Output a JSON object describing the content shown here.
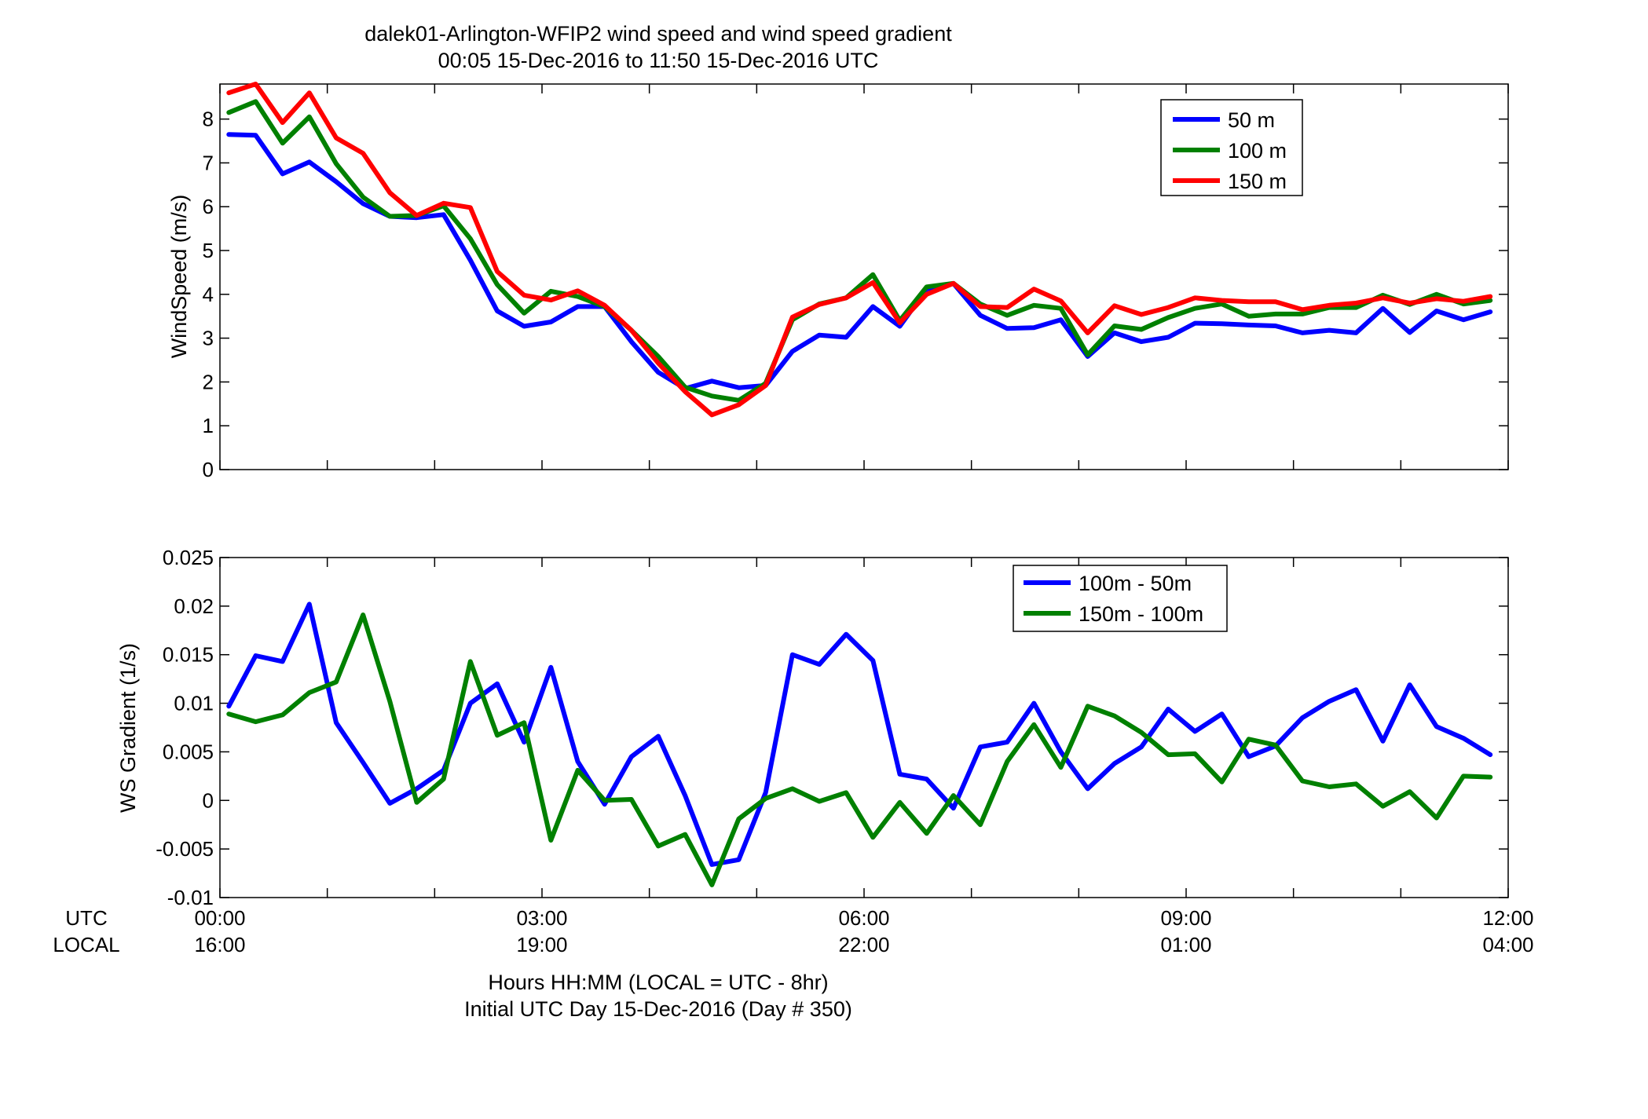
{
  "figure": {
    "title_line1": "dalek01-Arlington-WFIP2  wind speed and wind speed gradient",
    "title_line2": "00:05 15-Dec-2016 to 11:50 15-Dec-2016  UTC",
    "xlabel_line1": "Hours HH:MM  (LOCAL = UTC - 8hr)",
    "xlabel_line2": "Initial UTC Day 15-Dec-2016 (Day # 350)",
    "row_label_utc": "UTC",
    "row_label_local": "LOCAL",
    "x_ticks_utc": [
      "00:00",
      "03:00",
      "06:00",
      "09:00",
      "12:00"
    ],
    "x_ticks_local": [
      "16:00",
      "19:00",
      "22:00",
      "01:00",
      "04:00"
    ]
  },
  "chart_data": [
    {
      "type": "line",
      "ylabel": "WindSpeed (m/s)",
      "xlim": [
        0,
        12
      ],
      "ylim": [
        0,
        8.8
      ],
      "yticks": [
        "0",
        "1",
        "2",
        "3",
        "4",
        "5",
        "6",
        "7",
        "8"
      ],
      "grid": false,
      "legend_position": "top-right",
      "x": [
        0.083,
        0.333,
        0.583,
        0.833,
        1.083,
        1.333,
        1.583,
        1.833,
        2.083,
        2.333,
        2.583,
        2.833,
        3.083,
        3.333,
        3.583,
        3.833,
        4.083,
        4.333,
        4.583,
        4.833,
        5.083,
        5.333,
        5.583,
        5.833,
        6.083,
        6.333,
        6.583,
        6.833,
        7.083,
        7.333,
        7.583,
        7.833,
        8.083,
        8.333,
        8.583,
        8.833,
        9.083,
        9.333,
        9.583,
        9.833,
        10.083,
        10.333,
        10.583,
        10.833,
        11.083,
        11.333,
        11.583,
        11.833
      ],
      "series": [
        {
          "name": "50 m",
          "color": "#0000ff",
          "values": [
            7.65,
            7.63,
            6.75,
            7.02,
            6.57,
            6.07,
            5.78,
            5.75,
            5.82,
            4.78,
            3.62,
            3.27,
            3.37,
            3.72,
            3.72,
            2.92,
            2.22,
            1.85,
            2.02,
            1.87,
            1.92,
            2.7,
            3.07,
            3.02,
            3.72,
            3.27,
            4.12,
            4.25,
            3.52,
            3.22,
            3.24,
            3.42,
            2.58,
            3.12,
            2.92,
            3.02,
            3.34,
            3.33,
            3.3,
            3.28,
            3.12,
            3.18,
            3.12,
            3.68,
            3.13,
            3.62,
            3.42,
            3.6
          ]
        },
        {
          "name": "100 m",
          "color": "#008000",
          "values": [
            8.15,
            8.4,
            7.45,
            8.05,
            6.98,
            6.22,
            5.78,
            5.8,
            6.02,
            5.27,
            4.22,
            3.57,
            4.07,
            3.95,
            3.72,
            3.18,
            2.58,
            1.88,
            1.68,
            1.58,
            1.97,
            3.42,
            3.78,
            3.92,
            4.45,
            3.4,
            4.17,
            4.25,
            3.78,
            3.52,
            3.75,
            3.68,
            2.62,
            3.28,
            3.2,
            3.47,
            3.68,
            3.78,
            3.5,
            3.55,
            3.55,
            3.7,
            3.7,
            3.98,
            3.77,
            4.0,
            3.78,
            3.86
          ]
        },
        {
          "name": "150 m",
          "color": "#ff0000",
          "values": [
            8.6,
            8.8,
            7.92,
            8.6,
            7.57,
            7.22,
            6.32,
            5.8,
            6.08,
            5.98,
            4.52,
            3.98,
            3.87,
            4.08,
            3.75,
            3.18,
            2.43,
            1.78,
            1.25,
            1.48,
            1.92,
            3.48,
            3.77,
            3.92,
            4.27,
            3.35,
            4.0,
            4.25,
            3.72,
            3.7,
            4.12,
            3.85,
            3.12,
            3.74,
            3.54,
            3.7,
            3.92,
            3.86,
            3.83,
            3.83,
            3.65,
            3.75,
            3.8,
            3.92,
            3.8,
            3.9,
            3.84,
            3.95
          ]
        }
      ]
    },
    {
      "type": "line",
      "ylabel": "WS Gradient (1/s)",
      "xlim": [
        0,
        12
      ],
      "ylim": [
        -0.01,
        0.025
      ],
      "yticks": [
        "-0.01",
        "-0.005",
        "0",
        "0.005",
        "0.01",
        "0.015",
        "0.02",
        "0.025"
      ],
      "grid": false,
      "legend_position": "top-right",
      "x": [
        0.083,
        0.333,
        0.583,
        0.833,
        1.083,
        1.333,
        1.583,
        1.833,
        2.083,
        2.333,
        2.583,
        2.833,
        3.083,
        3.333,
        3.583,
        3.833,
        4.083,
        4.333,
        4.583,
        4.833,
        5.083,
        5.333,
        5.583,
        5.833,
        6.083,
        6.333,
        6.583,
        6.833,
        7.083,
        7.333,
        7.583,
        7.833,
        8.083,
        8.333,
        8.583,
        8.833,
        9.083,
        9.333,
        9.583,
        9.833,
        10.083,
        10.333,
        10.583,
        10.833,
        11.083,
        11.333,
        11.583,
        11.833
      ],
      "series": [
        {
          "name": "100m - 50m",
          "color": "#0000ff",
          "values": [
            0.0097,
            0.0149,
            0.0143,
            0.0202,
            0.008,
            0.0039,
            -0.0003,
            0.0012,
            0.0031,
            0.01,
            0.012,
            0.006,
            0.0137,
            0.004,
            -0.0004,
            0.0045,
            0.0066,
            0.0005,
            -0.0066,
            -0.0061,
            0.0008,
            0.015,
            0.014,
            0.0171,
            0.0144,
            0.0027,
            0.0022,
            -0.0008,
            0.0055,
            0.006,
            0.01,
            0.005,
            0.0012,
            0.0038,
            0.0055,
            0.0094,
            0.0071,
            0.0089,
            0.0045,
            0.0056,
            0.0085,
            0.0102,
            0.0114,
            0.0061,
            0.0119,
            0.0076,
            0.0064,
            0.0047
          ]
        },
        {
          "name": "150m - 100m",
          "color": "#008000",
          "values": [
            0.0089,
            0.0081,
            0.0088,
            0.0111,
            0.0122,
            0.0191,
            0.0102,
            -0.0002,
            0.0022,
            0.0143,
            0.0067,
            0.008,
            -0.0041,
            0.0031,
            0.0,
            0.0001,
            -0.0047,
            -0.0035,
            -0.0087,
            -0.0019,
            0.0002,
            0.0012,
            -0.0001,
            0.0008,
            -0.0038,
            -0.0002,
            -0.0034,
            0.0005,
            -0.0025,
            0.004,
            0.0078,
            0.0034,
            0.0097,
            0.0087,
            0.007,
            0.0047,
            0.0048,
            0.0019,
            0.0063,
            0.0057,
            0.002,
            0.0014,
            0.0017,
            -0.0006,
            0.0009,
            -0.0018,
            0.0025,
            0.0024
          ]
        }
      ]
    }
  ]
}
